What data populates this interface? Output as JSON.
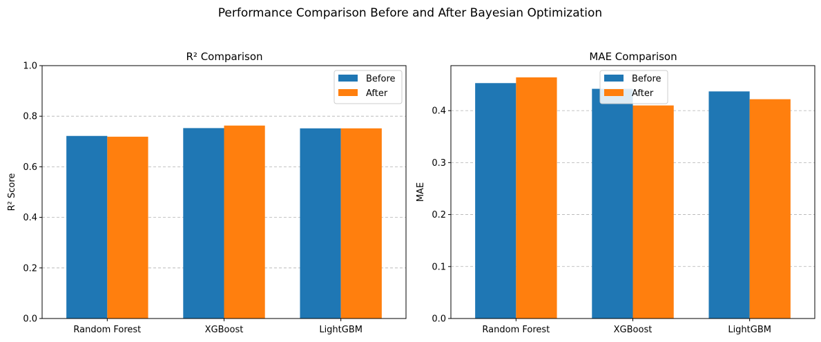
{
  "figure": {
    "suptitle": "Performance Comparison Before and After Bayesian Optimization"
  },
  "colors": {
    "before": "#1f77b4",
    "after": "#ff7f0e"
  },
  "chart_data": [
    {
      "type": "bar",
      "title": "R² Comparison",
      "xlabel": "",
      "ylabel": "R² Score",
      "categories": [
        "Random Forest",
        "XGBoost",
        "LightGBM"
      ],
      "ylim": [
        0,
        1.0
      ],
      "yticks": [
        0.0,
        0.2,
        0.4,
        0.6,
        0.8,
        1.0
      ],
      "ytick_labels": [
        "0.0",
        "0.2",
        "0.4",
        "0.6",
        "0.8",
        "1.0"
      ],
      "grid": "y-dashed",
      "legend_position": "top-right",
      "series": [
        {
          "name": "Before",
          "values": [
            0.722,
            0.753,
            0.752
          ]
        },
        {
          "name": "After",
          "values": [
            0.719,
            0.763,
            0.752
          ]
        }
      ]
    },
    {
      "type": "bar",
      "title": "MAE Comparison",
      "xlabel": "",
      "ylabel": "MAE",
      "categories": [
        "Random Forest",
        "XGBoost",
        "LightGBM"
      ],
      "ylim": [
        0,
        0.4866
      ],
      "yticks": [
        0.0,
        0.1,
        0.2,
        0.3,
        0.4
      ],
      "ytick_labels": [
        "0.0",
        "0.1",
        "0.2",
        "0.3",
        "0.4"
      ],
      "grid": "y-dashed",
      "legend_position": "top-center",
      "series": [
        {
          "name": "Before",
          "values": [
            0.453,
            0.442,
            0.437
          ]
        },
        {
          "name": "After",
          "values": [
            0.464,
            0.41,
            0.422
          ]
        }
      ]
    }
  ]
}
